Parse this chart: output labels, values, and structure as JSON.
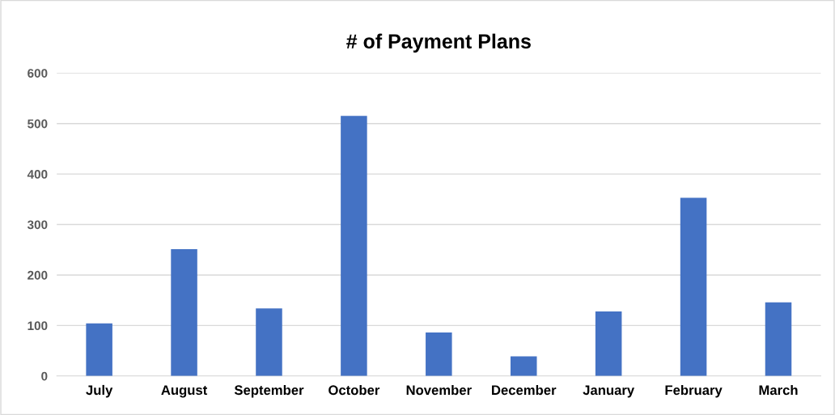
{
  "chart_data": {
    "type": "bar",
    "title": "# of Payment Plans",
    "categories": [
      "July",
      "August",
      "September",
      "October",
      "November",
      "December",
      "January",
      "February",
      "March"
    ],
    "values": [
      104,
      251,
      134,
      515,
      86,
      39,
      128,
      353,
      146
    ],
    "color": "#4472c4",
    "ylim": [
      0,
      600
    ],
    "yticks": [
      0,
      100,
      200,
      300,
      400,
      500,
      600
    ],
    "grid": "y",
    "legend": false
  }
}
